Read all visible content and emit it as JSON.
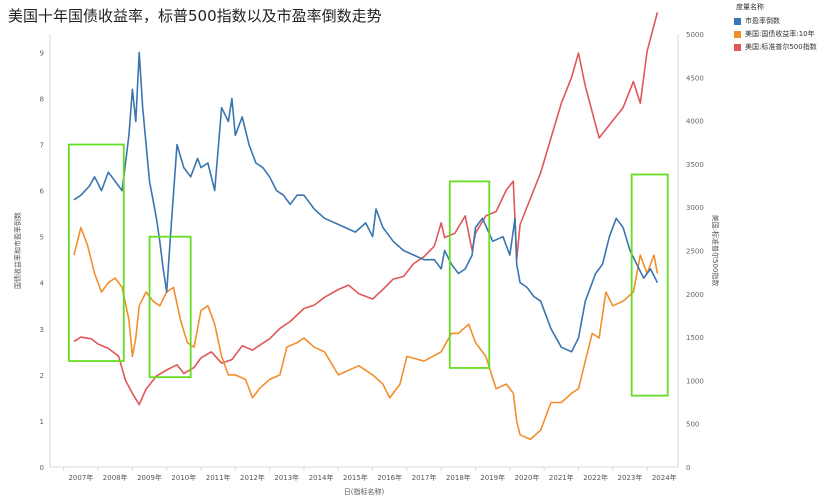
{
  "chart_data": {
    "type": "line",
    "title": "美国十年国债收益率，标普500指数以及市盈率倒数走势",
    "xlabel": "日(指标名称)",
    "ylabel_left": "国债收益率和市盈率倒数",
    "ylabel_right": "美国:标准普尔500指数",
    "x_ticks": [
      "2007年",
      "2008年",
      "2009年",
      "2010年",
      "2011年",
      "2012年",
      "2013年",
      "2014年",
      "2015年",
      "2016年",
      "2017年",
      "2018年",
      "2019年",
      "2020年",
      "2021年",
      "2022年",
      "2023年",
      "2024年"
    ],
    "y_left_ticks": [
      "0",
      "1",
      "2",
      "3",
      "4",
      "5",
      "6",
      "7",
      "8",
      "9"
    ],
    "y_left_range": [
      0,
      9.4
    ],
    "y_right_ticks": [
      "0",
      "500",
      "1000",
      "1500",
      "2000",
      "2500",
      "3000",
      "3500",
      "4000",
      "4500",
      "5000"
    ],
    "y_right_range": [
      0,
      5000
    ],
    "x_range": [
      2006.6,
      2024.9
    ],
    "legend_title": "度量名称",
    "legend_position": "top-right",
    "grid": false,
    "series": [
      {
        "name": "市盈率倒数",
        "color": "#3b75af",
        "axis": "left",
        "x": [
          2007.3,
          2007.5,
          2007.75,
          2007.9,
          2008.1,
          2008.3,
          2008.5,
          2008.7,
          2008.8,
          2008.9,
          2009.0,
          2009.1,
          2009.2,
          2009.3,
          2009.4,
          2009.5,
          2009.6,
          2009.7,
          2009.8,
          2009.9,
          2010.0,
          2010.1,
          2010.3,
          2010.5,
          2010.7,
          2010.9,
          2011.0,
          2011.2,
          2011.4,
          2011.6,
          2011.8,
          2011.9,
          2012.0,
          2012.2,
          2012.4,
          2012.6,
          2012.8,
          2013.0,
          2013.2,
          2013.4,
          2013.6,
          2013.8,
          2014.0,
          2014.3,
          2014.6,
          2014.9,
          2015.2,
          2015.5,
          2015.8,
          2016.0,
          2016.1,
          2016.3,
          2016.6,
          2016.9,
          2017.2,
          2017.5,
          2017.8,
          2018.0,
          2018.1,
          2018.3,
          2018.5,
          2018.7,
          2018.9,
          2019.0,
          2019.2,
          2019.5,
          2019.8,
          2020.0,
          2020.15,
          2020.2,
          2020.3,
          2020.5,
          2020.7,
          2020.9,
          2021.2,
          2021.5,
          2021.8,
          2022.0,
          2022.2,
          2022.4,
          2022.5,
          2022.7,
          2022.9,
          2023.1,
          2023.3,
          2023.5,
          2023.7,
          2023.9,
          2024.1,
          2024.3
        ],
        "y": [
          5.8,
          5.9,
          6.1,
          6.3,
          6.0,
          6.4,
          6.2,
          6.0,
          6.6,
          7.2,
          8.2,
          7.5,
          9.0,
          7.8,
          7.0,
          6.2,
          5.8,
          5.4,
          4.9,
          4.3,
          3.8,
          4.9,
          7.0,
          6.5,
          6.3,
          6.7,
          6.5,
          6.6,
          6.0,
          7.8,
          7.5,
          8.0,
          7.2,
          7.6,
          7.0,
          6.6,
          6.5,
          6.3,
          6.0,
          5.9,
          5.7,
          5.9,
          5.9,
          5.6,
          5.4,
          5.3,
          5.2,
          5.1,
          5.3,
          5.0,
          5.6,
          5.2,
          4.9,
          4.7,
          4.6,
          4.5,
          4.5,
          4.3,
          4.7,
          4.4,
          4.2,
          4.3,
          4.6,
          5.2,
          5.4,
          4.9,
          5.0,
          4.6,
          5.4,
          4.4,
          4.0,
          3.9,
          3.7,
          3.6,
          3.0,
          2.6,
          2.5,
          2.8,
          3.6,
          4.0,
          4.2,
          4.4,
          5.0,
          5.4,
          5.2,
          4.7,
          4.4,
          4.1,
          4.3,
          4.0
        ]
      },
      {
        "name": "美国:国债收益率:10年",
        "color": "#f28e2b",
        "axis": "left",
        "x": [
          2007.3,
          2007.5,
          2007.7,
          2007.9,
          2008.1,
          2008.3,
          2008.5,
          2008.7,
          2008.9,
          2009.0,
          2009.1,
          2009.2,
          2009.4,
          2009.6,
          2009.8,
          2010.0,
          2010.2,
          2010.4,
          2010.6,
          2010.8,
          2011.0,
          2011.2,
          2011.4,
          2011.6,
          2011.8,
          2012.0,
          2012.3,
          2012.5,
          2012.7,
          2013.0,
          2013.3,
          2013.5,
          2013.8,
          2014.0,
          2014.3,
          2014.6,
          2015.0,
          2015.3,
          2015.6,
          2016.0,
          2016.3,
          2016.5,
          2016.8,
          2017.0,
          2017.5,
          2018.0,
          2018.3,
          2018.5,
          2018.8,
          2019.0,
          2019.3,
          2019.6,
          2019.9,
          2020.1,
          2020.2,
          2020.3,
          2020.6,
          2020.9,
          2021.2,
          2021.5,
          2021.8,
          2022.0,
          2022.2,
          2022.4,
          2022.6,
          2022.8,
          2023.0,
          2023.3,
          2023.6,
          2023.8,
          2024.0,
          2024.2,
          2024.3
        ],
        "y": [
          4.6,
          5.2,
          4.8,
          4.2,
          3.8,
          4.0,
          4.1,
          3.9,
          3.2,
          2.4,
          2.8,
          3.5,
          3.8,
          3.6,
          3.5,
          3.8,
          3.9,
          3.2,
          2.7,
          2.6,
          3.4,
          3.5,
          3.1,
          2.4,
          2.0,
          2.0,
          1.9,
          1.5,
          1.7,
          1.9,
          2.0,
          2.6,
          2.7,
          2.8,
          2.6,
          2.5,
          2.0,
          2.1,
          2.2,
          2.0,
          1.8,
          1.5,
          1.8,
          2.4,
          2.3,
          2.5,
          2.9,
          2.9,
          3.1,
          2.7,
          2.4,
          1.7,
          1.8,
          1.6,
          1.0,
          0.7,
          0.6,
          0.8,
          1.4,
          1.4,
          1.6,
          1.7,
          2.3,
          2.9,
          2.8,
          3.8,
          3.5,
          3.6,
          3.8,
          4.6,
          4.2,
          4.6,
          4.2
        ]
      },
      {
        "name": "美国:标准普尔500指数",
        "color": "#e15759",
        "axis": "right",
        "x": [
          2007.3,
          2007.5,
          2007.8,
          2008.0,
          2008.3,
          2008.6,
          2008.8,
          2009.0,
          2009.2,
          2009.4,
          2009.7,
          2010.0,
          2010.3,
          2010.5,
          2010.8,
          2011.0,
          2011.3,
          2011.6,
          2011.9,
          2012.2,
          2012.5,
          2012.8,
          2013.0,
          2013.3,
          2013.6,
          2014.0,
          2014.3,
          2014.6,
          2015.0,
          2015.3,
          2015.6,
          2016.0,
          2016.3,
          2016.6,
          2016.9,
          2017.2,
          2017.5,
          2017.8,
          2018.0,
          2018.1,
          2018.4,
          2018.7,
          2018.9,
          2019.0,
          2019.3,
          2019.6,
          2019.9,
          2020.1,
          2020.2,
          2020.3,
          2020.6,
          2020.9,
          2021.2,
          2021.5,
          2021.8,
          2022.0,
          2022.2,
          2022.4,
          2022.6,
          2022.8,
          2023.0,
          2023.3,
          2023.6,
          2023.8,
          2024.0,
          2024.2,
          2024.3
        ],
        "y": [
          1450,
          1500,
          1480,
          1420,
          1370,
          1280,
          1000,
          850,
          720,
          900,
          1050,
          1120,
          1180,
          1080,
          1150,
          1260,
          1330,
          1200,
          1240,
          1400,
          1350,
          1430,
          1480,
          1600,
          1680,
          1830,
          1870,
          1960,
          2050,
          2100,
          2000,
          1940,
          2050,
          2170,
          2200,
          2350,
          2430,
          2550,
          2820,
          2650,
          2700,
          2900,
          2500,
          2700,
          2900,
          2950,
          3200,
          3300,
          2400,
          2800,
          3100,
          3400,
          3800,
          4200,
          4500,
          4780,
          4400,
          4100,
          3800,
          3900,
          4000,
          4150,
          4450,
          4200,
          4800,
          5100,
          5250
        ]
      }
    ],
    "highlight_boxes": [
      {
        "x": [
          2007.15,
          2008.75
        ],
        "y": [
          2.3,
          7.0
        ]
      },
      {
        "x": [
          2009.5,
          2010.7
        ],
        "y": [
          1.95,
          5.0
        ]
      },
      {
        "x": [
          2018.25,
          2019.4
        ],
        "y": [
          2.15,
          6.2
        ]
      },
      {
        "x": [
          2023.55,
          2024.6
        ],
        "y": [
          1.55,
          6.35
        ]
      }
    ]
  }
}
